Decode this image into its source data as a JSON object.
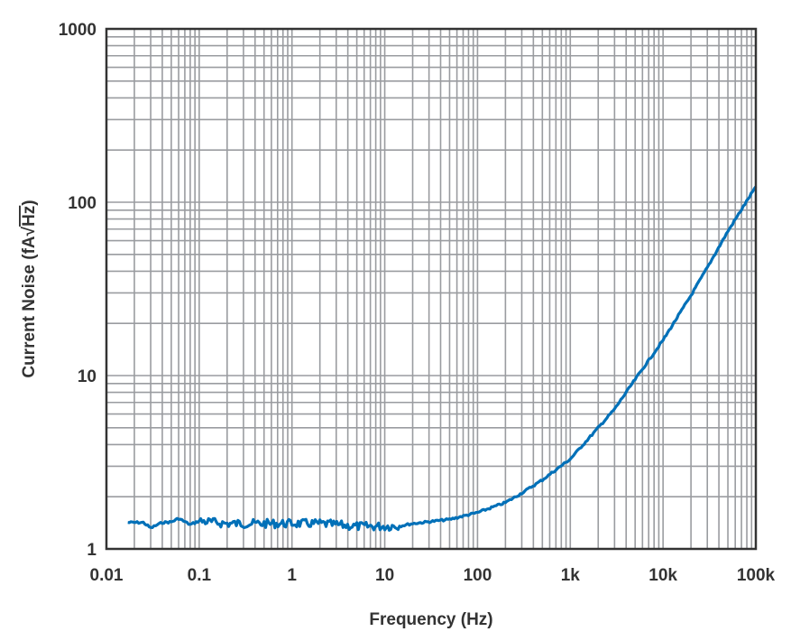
{
  "chart_data": {
    "type": "line",
    "title": "",
    "xlabel": "Frequency (Hz)",
    "ylabel": "Current Noise (fA√Hz)",
    "x_scale": "log",
    "y_scale": "log",
    "xlim": [
      0.01,
      100000
    ],
    "ylim": [
      1,
      1000
    ],
    "grid": true,
    "x_ticks": [
      {
        "value": 0.01,
        "label": "0.01"
      },
      {
        "value": 0.1,
        "label": "0.1"
      },
      {
        "value": 1,
        "label": "1"
      },
      {
        "value": 10,
        "label": "10"
      },
      {
        "value": 100,
        "label": "100"
      },
      {
        "value": 1000,
        "label": "1k"
      },
      {
        "value": 10000,
        "label": "10k"
      },
      {
        "value": 100000,
        "label": "100k"
      }
    ],
    "y_ticks": [
      {
        "value": 1,
        "label": "1"
      },
      {
        "value": 10,
        "label": "10"
      },
      {
        "value": 100,
        "label": "100"
      },
      {
        "value": 1000,
        "label": "1000"
      }
    ],
    "series": [
      {
        "color": "#0070b8",
        "x": [
          0.017,
          0.025,
          0.03,
          0.04,
          0.05,
          0.06,
          0.08,
          0.1,
          0.2,
          0.5,
          1,
          2,
          5,
          10,
          15,
          20,
          50,
          100,
          200,
          300,
          500,
          1000,
          2000,
          3000,
          5000,
          10000,
          20000,
          30000,
          50000,
          100000
        ],
        "y": [
          1.42,
          1.42,
          1.32,
          1.42,
          1.43,
          1.5,
          1.38,
          1.45,
          1.4,
          1.4,
          1.4,
          1.4,
          1.35,
          1.35,
          1.36,
          1.4,
          1.48,
          1.62,
          1.85,
          2.1,
          2.5,
          3.3,
          5.0,
          6.4,
          9.5,
          16,
          29,
          42,
          68,
          123
        ]
      }
    ]
  }
}
